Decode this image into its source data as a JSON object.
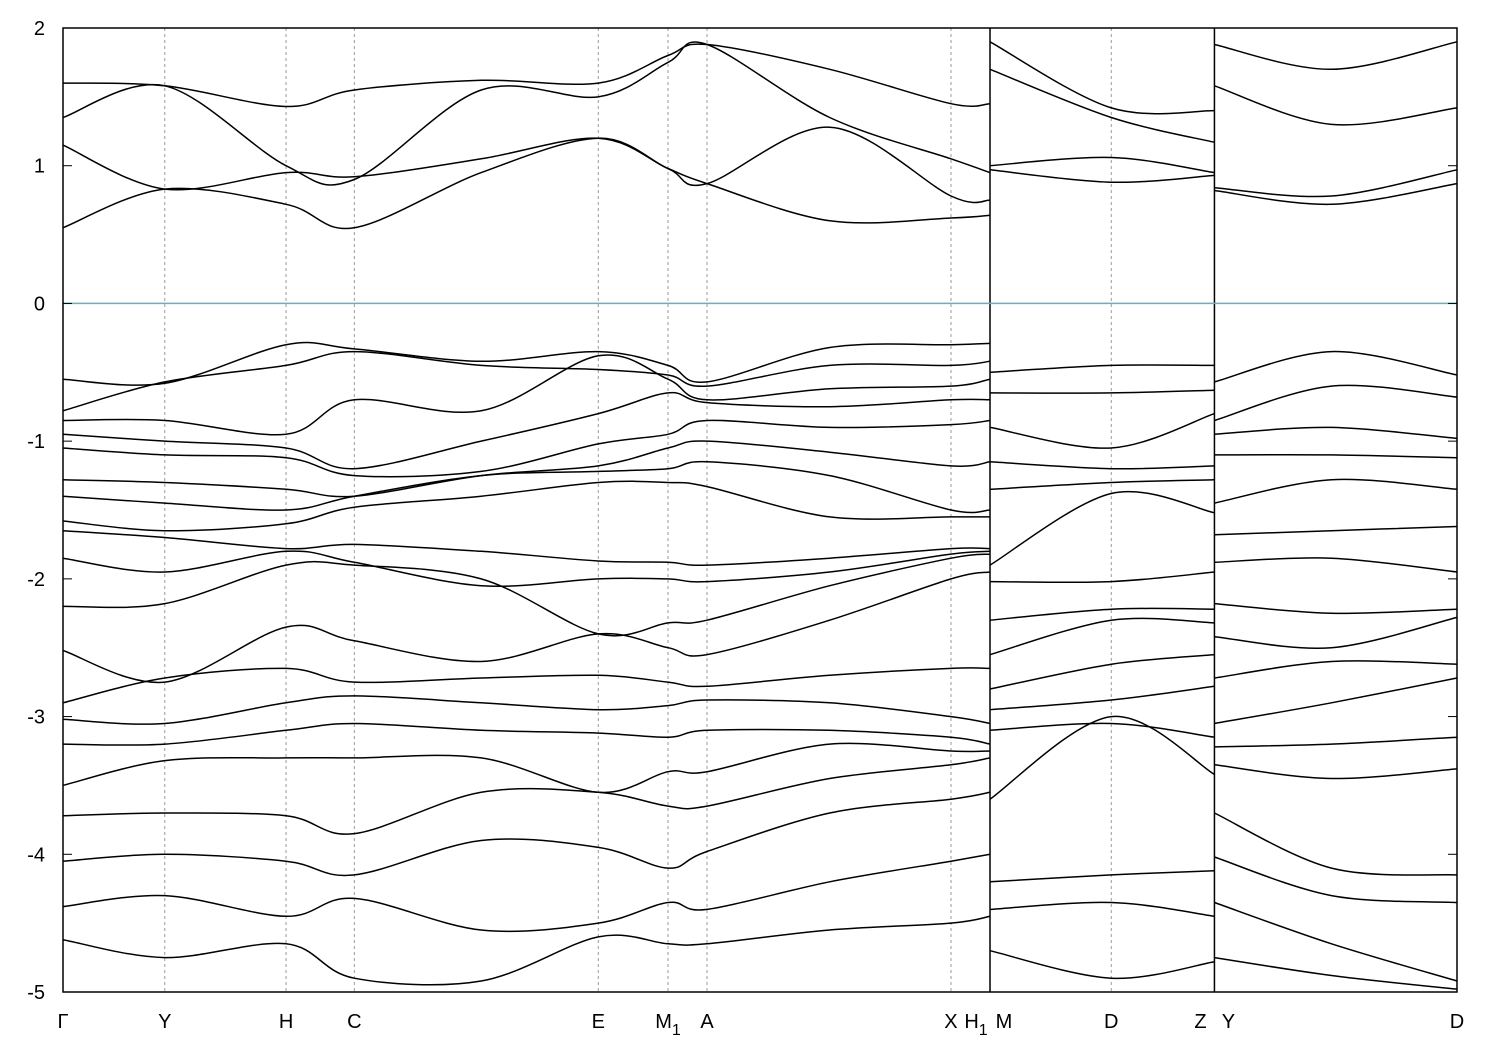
{
  "chart_data": {
    "type": "line",
    "title": "",
    "xlabel": "",
    "ylabel": "",
    "ylim": [
      -5,
      2
    ],
    "yticks": [
      2,
      1,
      0,
      -1,
      -2,
      -3,
      -4,
      -5
    ],
    "ytick_labels": [
      "2",
      "1",
      "0",
      "-1",
      "-2",
      "-3",
      "-4",
      "-5"
    ],
    "xlim": [
      0,
      1
    ],
    "grid": "vertical dotted lines at high-symmetry points",
    "fermi_level": 0,
    "colors": {
      "bands": "#000000",
      "fermi": "#5fb0c8",
      "kpath": "#9a9a9a"
    },
    "kpoints": [
      {
        "label": "Γ",
        "x": 0.0
      },
      {
        "label": "Y",
        "x": 0.073
      },
      {
        "label": "H",
        "x": 0.16
      },
      {
        "label": "C",
        "x": 0.209
      },
      {
        "label": "E",
        "x": 0.384
      },
      {
        "label": "M",
        "sub": "1",
        "x": 0.434
      },
      {
        "label": "A",
        "x": 0.462
      },
      {
        "label": "X",
        "x": 0.637
      },
      {
        "label": "H",
        "sub": "1",
        "x": 0.665
      },
      {
        "label": "M",
        "x": 0.665
      },
      {
        "label": "D",
        "x": 0.752
      },
      {
        "label": "Z",
        "x": 0.826
      },
      {
        "label": "Y",
        "x": 0.826
      },
      {
        "label": "D",
        "x": 1.0
      }
    ],
    "segment_breaks": [
      0.665,
      0.826
    ],
    "series": [
      {
        "x": [
          0.0,
          0.073,
          0.16,
          0.209,
          0.3,
          0.384,
          0.434,
          0.462,
          0.55,
          0.637,
          0.665
        ],
        "values": [
          0.55,
          0.83,
          0.72,
          0.55,
          0.95,
          1.2,
          0.98,
          0.87,
          0.6,
          0.62,
          0.64
        ]
      },
      {
        "x": [
          0.0,
          0.073,
          0.16,
          0.209,
          0.3,
          0.384,
          0.434,
          0.462,
          0.55,
          0.637,
          0.665
        ],
        "values": [
          1.15,
          0.83,
          0.95,
          0.92,
          1.05,
          1.2,
          0.98,
          0.87,
          1.28,
          0.78,
          0.75
        ]
      },
      {
        "x": [
          0.0,
          0.073,
          0.16,
          0.209,
          0.3,
          0.384,
          0.434,
          0.462,
          0.55,
          0.637,
          0.665
        ],
        "values": [
          1.35,
          1.58,
          1.0,
          0.9,
          1.55,
          1.5,
          1.75,
          1.88,
          1.35,
          1.05,
          0.95
        ]
      },
      {
        "x": [
          0.0,
          0.073,
          0.16,
          0.209,
          0.3,
          0.384,
          0.434,
          0.462,
          0.55,
          0.637,
          0.665
        ],
        "values": [
          1.6,
          1.58,
          1.43,
          1.55,
          1.62,
          1.6,
          1.8,
          1.88,
          1.7,
          1.45,
          1.45
        ]
      },
      {
        "x": [
          0.665,
          0.752,
          0.826
        ],
        "values": [
          0.97,
          0.88,
          0.93
        ]
      },
      {
        "x": [
          0.665,
          0.752,
          0.826
        ],
        "values": [
          1.0,
          1.06,
          0.95
        ]
      },
      {
        "x": [
          0.665,
          0.752,
          0.826
        ],
        "values": [
          1.7,
          1.35,
          1.17
        ]
      },
      {
        "x": [
          0.665,
          0.752,
          0.826
        ],
        "values": [
          1.9,
          1.42,
          1.4
        ]
      },
      {
        "x": [
          0.826,
          0.91,
          1.0
        ],
        "values": [
          0.82,
          0.72,
          0.87
        ]
      },
      {
        "x": [
          0.826,
          0.91,
          1.0
        ],
        "values": [
          0.84,
          0.78,
          0.97
        ]
      },
      {
        "x": [
          0.826,
          0.91,
          1.0
        ],
        "values": [
          1.58,
          1.3,
          1.42
        ]
      },
      {
        "x": [
          0.826,
          0.91,
          1.0
        ],
        "values": [
          1.88,
          1.7,
          1.9
        ]
      },
      {
        "x": [
          0.0,
          0.073,
          0.16,
          0.209,
          0.3,
          0.384,
          0.434,
          0.462,
          0.55,
          0.637,
          0.665
        ],
        "values": [
          -0.55,
          -0.58,
          -0.3,
          -0.33,
          -0.42,
          -0.35,
          -0.45,
          -0.57,
          -0.32,
          -0.3,
          -0.29
        ]
      },
      {
        "x": [
          0.0,
          0.073,
          0.16,
          0.209,
          0.3,
          0.384,
          0.434,
          0.462,
          0.55,
          0.637,
          0.665
        ],
        "values": [
          -0.78,
          -0.57,
          -0.45,
          -0.35,
          -0.45,
          -0.48,
          -0.52,
          -0.6,
          -0.45,
          -0.45,
          -0.42
        ]
      },
      {
        "x": [
          0.0,
          0.073,
          0.16,
          0.209,
          0.3,
          0.384,
          0.434,
          0.462,
          0.55,
          0.637,
          0.665
        ],
        "values": [
          -0.85,
          -0.85,
          -0.95,
          -0.7,
          -0.78,
          -0.38,
          -0.55,
          -0.7,
          -0.62,
          -0.6,
          -0.55
        ]
      },
      {
        "x": [
          0.0,
          0.073,
          0.16,
          0.209,
          0.3,
          0.384,
          0.434,
          0.462,
          0.55,
          0.637,
          0.665
        ],
        "values": [
          -0.95,
          -1.0,
          -1.05,
          -1.2,
          -1.0,
          -0.8,
          -0.65,
          -0.72,
          -0.75,
          -0.7,
          -0.7
        ]
      },
      {
        "x": [
          0.0,
          0.073,
          0.16,
          0.209,
          0.3,
          0.384,
          0.434,
          0.462,
          0.55,
          0.637,
          0.665
        ],
        "values": [
          -1.05,
          -1.1,
          -1.12,
          -1.25,
          -1.22,
          -1.02,
          -0.95,
          -0.85,
          -0.9,
          -0.88,
          -0.85
        ]
      },
      {
        "x": [
          0.0,
          0.073,
          0.16,
          0.209,
          0.3,
          0.384,
          0.434,
          0.462,
          0.55,
          0.637,
          0.665
        ],
        "values": [
          -1.28,
          -1.3,
          -1.35,
          -1.4,
          -1.25,
          -1.18,
          -1.05,
          -1.0,
          -1.08,
          -1.18,
          -1.15
        ]
      },
      {
        "x": [
          0.0,
          0.073,
          0.16,
          0.209,
          0.3,
          0.384,
          0.434,
          0.462,
          0.55,
          0.637,
          0.665
        ],
        "values": [
          -1.4,
          -1.45,
          -1.5,
          -1.4,
          -1.25,
          -1.22,
          -1.2,
          -1.15,
          -1.25,
          -1.5,
          -1.5
        ]
      },
      {
        "x": [
          0.0,
          0.073,
          0.16,
          0.209,
          0.3,
          0.384,
          0.434,
          0.462,
          0.55,
          0.637,
          0.665
        ],
        "values": [
          -1.58,
          -1.65,
          -1.6,
          -1.48,
          -1.4,
          -1.3,
          -1.3,
          -1.33,
          -1.55,
          -1.55,
          -1.55
        ]
      },
      {
        "x": [
          0.0,
          0.073,
          0.16,
          0.209,
          0.3,
          0.384,
          0.434,
          0.462,
          0.55,
          0.637,
          0.665
        ],
        "values": [
          -1.65,
          -1.7,
          -1.78,
          -1.75,
          -1.8,
          -1.87,
          -1.88,
          -1.9,
          -1.85,
          -1.78,
          -1.78
        ]
      },
      {
        "x": [
          0.0,
          0.073,
          0.16,
          0.209,
          0.3,
          0.384,
          0.434,
          0.462,
          0.55,
          0.637,
          0.665
        ],
        "values": [
          -1.85,
          -1.95,
          -1.8,
          -1.88,
          -2.05,
          -2.0,
          -2.0,
          -2.02,
          -1.95,
          -1.82,
          -1.8
        ]
      },
      {
        "x": [
          0.0,
          0.073,
          0.16,
          0.209,
          0.3,
          0.384,
          0.434,
          0.462,
          0.55,
          0.637,
          0.665
        ],
        "values": [
          -2.2,
          -2.18,
          -1.9,
          -1.9,
          -2.0,
          -2.4,
          -2.32,
          -2.3,
          -2.05,
          -1.85,
          -1.82
        ]
      },
      {
        "x": [
          0.0,
          0.073,
          0.16,
          0.209,
          0.3,
          0.384,
          0.434,
          0.462,
          0.55,
          0.637,
          0.665
        ],
        "values": [
          -2.52,
          -2.75,
          -2.35,
          -2.45,
          -2.6,
          -2.4,
          -2.5,
          -2.55,
          -2.3,
          -2.0,
          -1.95
        ]
      },
      {
        "x": [
          0.0,
          0.073,
          0.16,
          0.209,
          0.3,
          0.384,
          0.434,
          0.462,
          0.55,
          0.637,
          0.665
        ],
        "values": [
          -2.9,
          -2.72,
          -2.65,
          -2.75,
          -2.72,
          -2.7,
          -2.75,
          -2.78,
          -2.7,
          -2.65,
          -2.65
        ]
      },
      {
        "x": [
          0.0,
          0.073,
          0.16,
          0.209,
          0.3,
          0.384,
          0.434,
          0.462,
          0.55,
          0.637,
          0.665
        ],
        "values": [
          -3.02,
          -3.05,
          -2.9,
          -2.85,
          -2.9,
          -2.95,
          -2.92,
          -2.88,
          -2.9,
          -3.0,
          -3.05
        ]
      },
      {
        "x": [
          0.0,
          0.073,
          0.16,
          0.209,
          0.3,
          0.384,
          0.434,
          0.462,
          0.55,
          0.637,
          0.665
        ],
        "values": [
          -3.2,
          -3.2,
          -3.1,
          -3.05,
          -3.1,
          -3.12,
          -3.15,
          -3.1,
          -3.1,
          -3.15,
          -3.2
        ]
      },
      {
        "x": [
          0.0,
          0.073,
          0.16,
          0.209,
          0.3,
          0.384,
          0.434,
          0.462,
          0.55,
          0.637,
          0.665
        ],
        "values": [
          -3.5,
          -3.32,
          -3.3,
          -3.3,
          -3.3,
          -3.55,
          -3.4,
          -3.4,
          -3.2,
          -3.25,
          -3.25
        ]
      },
      {
        "x": [
          0.0,
          0.073,
          0.16,
          0.209,
          0.3,
          0.384,
          0.434,
          0.462,
          0.55,
          0.637,
          0.665
        ],
        "values": [
          -3.72,
          -3.7,
          -3.72,
          -3.85,
          -3.55,
          -3.55,
          -3.65,
          -3.65,
          -3.45,
          -3.35,
          -3.3
        ]
      },
      {
        "x": [
          0.0,
          0.073,
          0.16,
          0.209,
          0.3,
          0.384,
          0.434,
          0.462,
          0.55,
          0.637,
          0.665
        ],
        "values": [
          -4.05,
          -4.0,
          -4.05,
          -4.15,
          -3.9,
          -3.95,
          -4.1,
          -3.98,
          -3.7,
          -3.6,
          -3.55
        ]
      },
      {
        "x": [
          0.0,
          0.073,
          0.16,
          0.209,
          0.3,
          0.384,
          0.434,
          0.462,
          0.55,
          0.637,
          0.665
        ],
        "values": [
          -4.38,
          -4.3,
          -4.45,
          -4.32,
          -4.55,
          -4.5,
          -4.35,
          -4.4,
          -4.2,
          -4.05,
          -4.0
        ]
      },
      {
        "x": [
          0.0,
          0.073,
          0.16,
          0.209,
          0.3,
          0.384,
          0.434,
          0.462,
          0.55,
          0.637,
          0.665
        ],
        "values": [
          -4.62,
          -4.75,
          -4.65,
          -4.9,
          -4.92,
          -4.6,
          -4.65,
          -4.65,
          -4.55,
          -4.5,
          -4.45
        ]
      },
      {
        "x": [
          0.665,
          0.752,
          0.826
        ],
        "values": [
          -0.5,
          -0.45,
          -0.45
        ]
      },
      {
        "x": [
          0.665,
          0.752,
          0.826
        ],
        "values": [
          -0.65,
          -0.65,
          -0.63
        ]
      },
      {
        "x": [
          0.665,
          0.752,
          0.826
        ],
        "values": [
          -0.9,
          -1.05,
          -0.8
        ]
      },
      {
        "x": [
          0.665,
          0.752,
          0.826
        ],
        "values": [
          -1.15,
          -1.2,
          -1.18
        ]
      },
      {
        "x": [
          0.665,
          0.752,
          0.826
        ],
        "values": [
          -1.35,
          -1.3,
          -1.28
        ]
      },
      {
        "x": [
          0.665,
          0.752,
          0.826
        ],
        "values": [
          -1.9,
          -1.38,
          -1.52
        ]
      },
      {
        "x": [
          0.665,
          0.752,
          0.826
        ],
        "values": [
          -2.02,
          -2.02,
          -1.95
        ]
      },
      {
        "x": [
          0.665,
          0.752,
          0.826
        ],
        "values": [
          -2.3,
          -2.22,
          -2.22
        ]
      },
      {
        "x": [
          0.665,
          0.752,
          0.826
        ],
        "values": [
          -2.55,
          -2.3,
          -2.32
        ]
      },
      {
        "x": [
          0.665,
          0.752,
          0.826
        ],
        "values": [
          -2.8,
          -2.62,
          -2.55
        ]
      },
      {
        "x": [
          0.665,
          0.752,
          0.826
        ],
        "values": [
          -2.95,
          -2.88,
          -2.78
        ]
      },
      {
        "x": [
          0.665,
          0.752,
          0.826
        ],
        "values": [
          -3.1,
          -3.05,
          -3.15
        ]
      },
      {
        "x": [
          0.665,
          0.752,
          0.826
        ],
        "values": [
          -3.6,
          -3.0,
          -3.42
        ]
      },
      {
        "x": [
          0.665,
          0.752,
          0.826
        ],
        "values": [
          -4.2,
          -4.15,
          -4.12
        ]
      },
      {
        "x": [
          0.665,
          0.752,
          0.826
        ],
        "values": [
          -4.4,
          -4.35,
          -4.45
        ]
      },
      {
        "x": [
          0.665,
          0.752,
          0.826
        ],
        "values": [
          -4.7,
          -4.9,
          -4.78
        ]
      },
      {
        "x": [
          0.826,
          0.91,
          1.0
        ],
        "values": [
          -0.57,
          -0.35,
          -0.52
        ]
      },
      {
        "x": [
          0.826,
          0.91,
          1.0
        ],
        "values": [
          -0.85,
          -0.6,
          -0.68
        ]
      },
      {
        "x": [
          0.826,
          0.91,
          1.0
        ],
        "values": [
          -0.95,
          -0.9,
          -0.98
        ]
      },
      {
        "x": [
          0.826,
          0.91,
          1.0
        ],
        "values": [
          -1.1,
          -1.1,
          -1.12
        ]
      },
      {
        "x": [
          0.826,
          0.91,
          1.0
        ],
        "values": [
          -1.45,
          -1.28,
          -1.35
        ]
      },
      {
        "x": [
          0.826,
          0.91,
          1.0
        ],
        "values": [
          -1.68,
          -1.65,
          -1.62
        ]
      },
      {
        "x": [
          0.826,
          0.91,
          1.0
        ],
        "values": [
          -1.88,
          -1.85,
          -1.95
        ]
      },
      {
        "x": [
          0.826,
          0.91,
          1.0
        ],
        "values": [
          -2.18,
          -2.25,
          -2.22
        ]
      },
      {
        "x": [
          0.826,
          0.91,
          1.0
        ],
        "values": [
          -2.42,
          -2.5,
          -2.28
        ]
      },
      {
        "x": [
          0.826,
          0.91,
          1.0
        ],
        "values": [
          -2.72,
          -2.6,
          -2.62
        ]
      },
      {
        "x": [
          0.826,
          0.91,
          1.0
        ],
        "values": [
          -3.05,
          -2.9,
          -2.72
        ]
      },
      {
        "x": [
          0.826,
          0.91,
          1.0
        ],
        "values": [
          -3.22,
          -3.2,
          -3.15
        ]
      },
      {
        "x": [
          0.826,
          0.91,
          1.0
        ],
        "values": [
          -3.35,
          -3.45,
          -3.38
        ]
      },
      {
        "x": [
          0.826,
          0.91,
          1.0
        ],
        "values": [
          -3.7,
          -4.1,
          -4.15
        ]
      },
      {
        "x": [
          0.826,
          0.91,
          1.0
        ],
        "values": [
          -4.02,
          -4.3,
          -4.35
        ]
      },
      {
        "x": [
          0.826,
          0.91,
          1.0
        ],
        "values": [
          -4.35,
          -4.65,
          -4.92
        ]
      },
      {
        "x": [
          0.826,
          0.91,
          1.0
        ],
        "values": [
          -4.75,
          -4.88,
          -4.98
        ]
      }
    ]
  }
}
